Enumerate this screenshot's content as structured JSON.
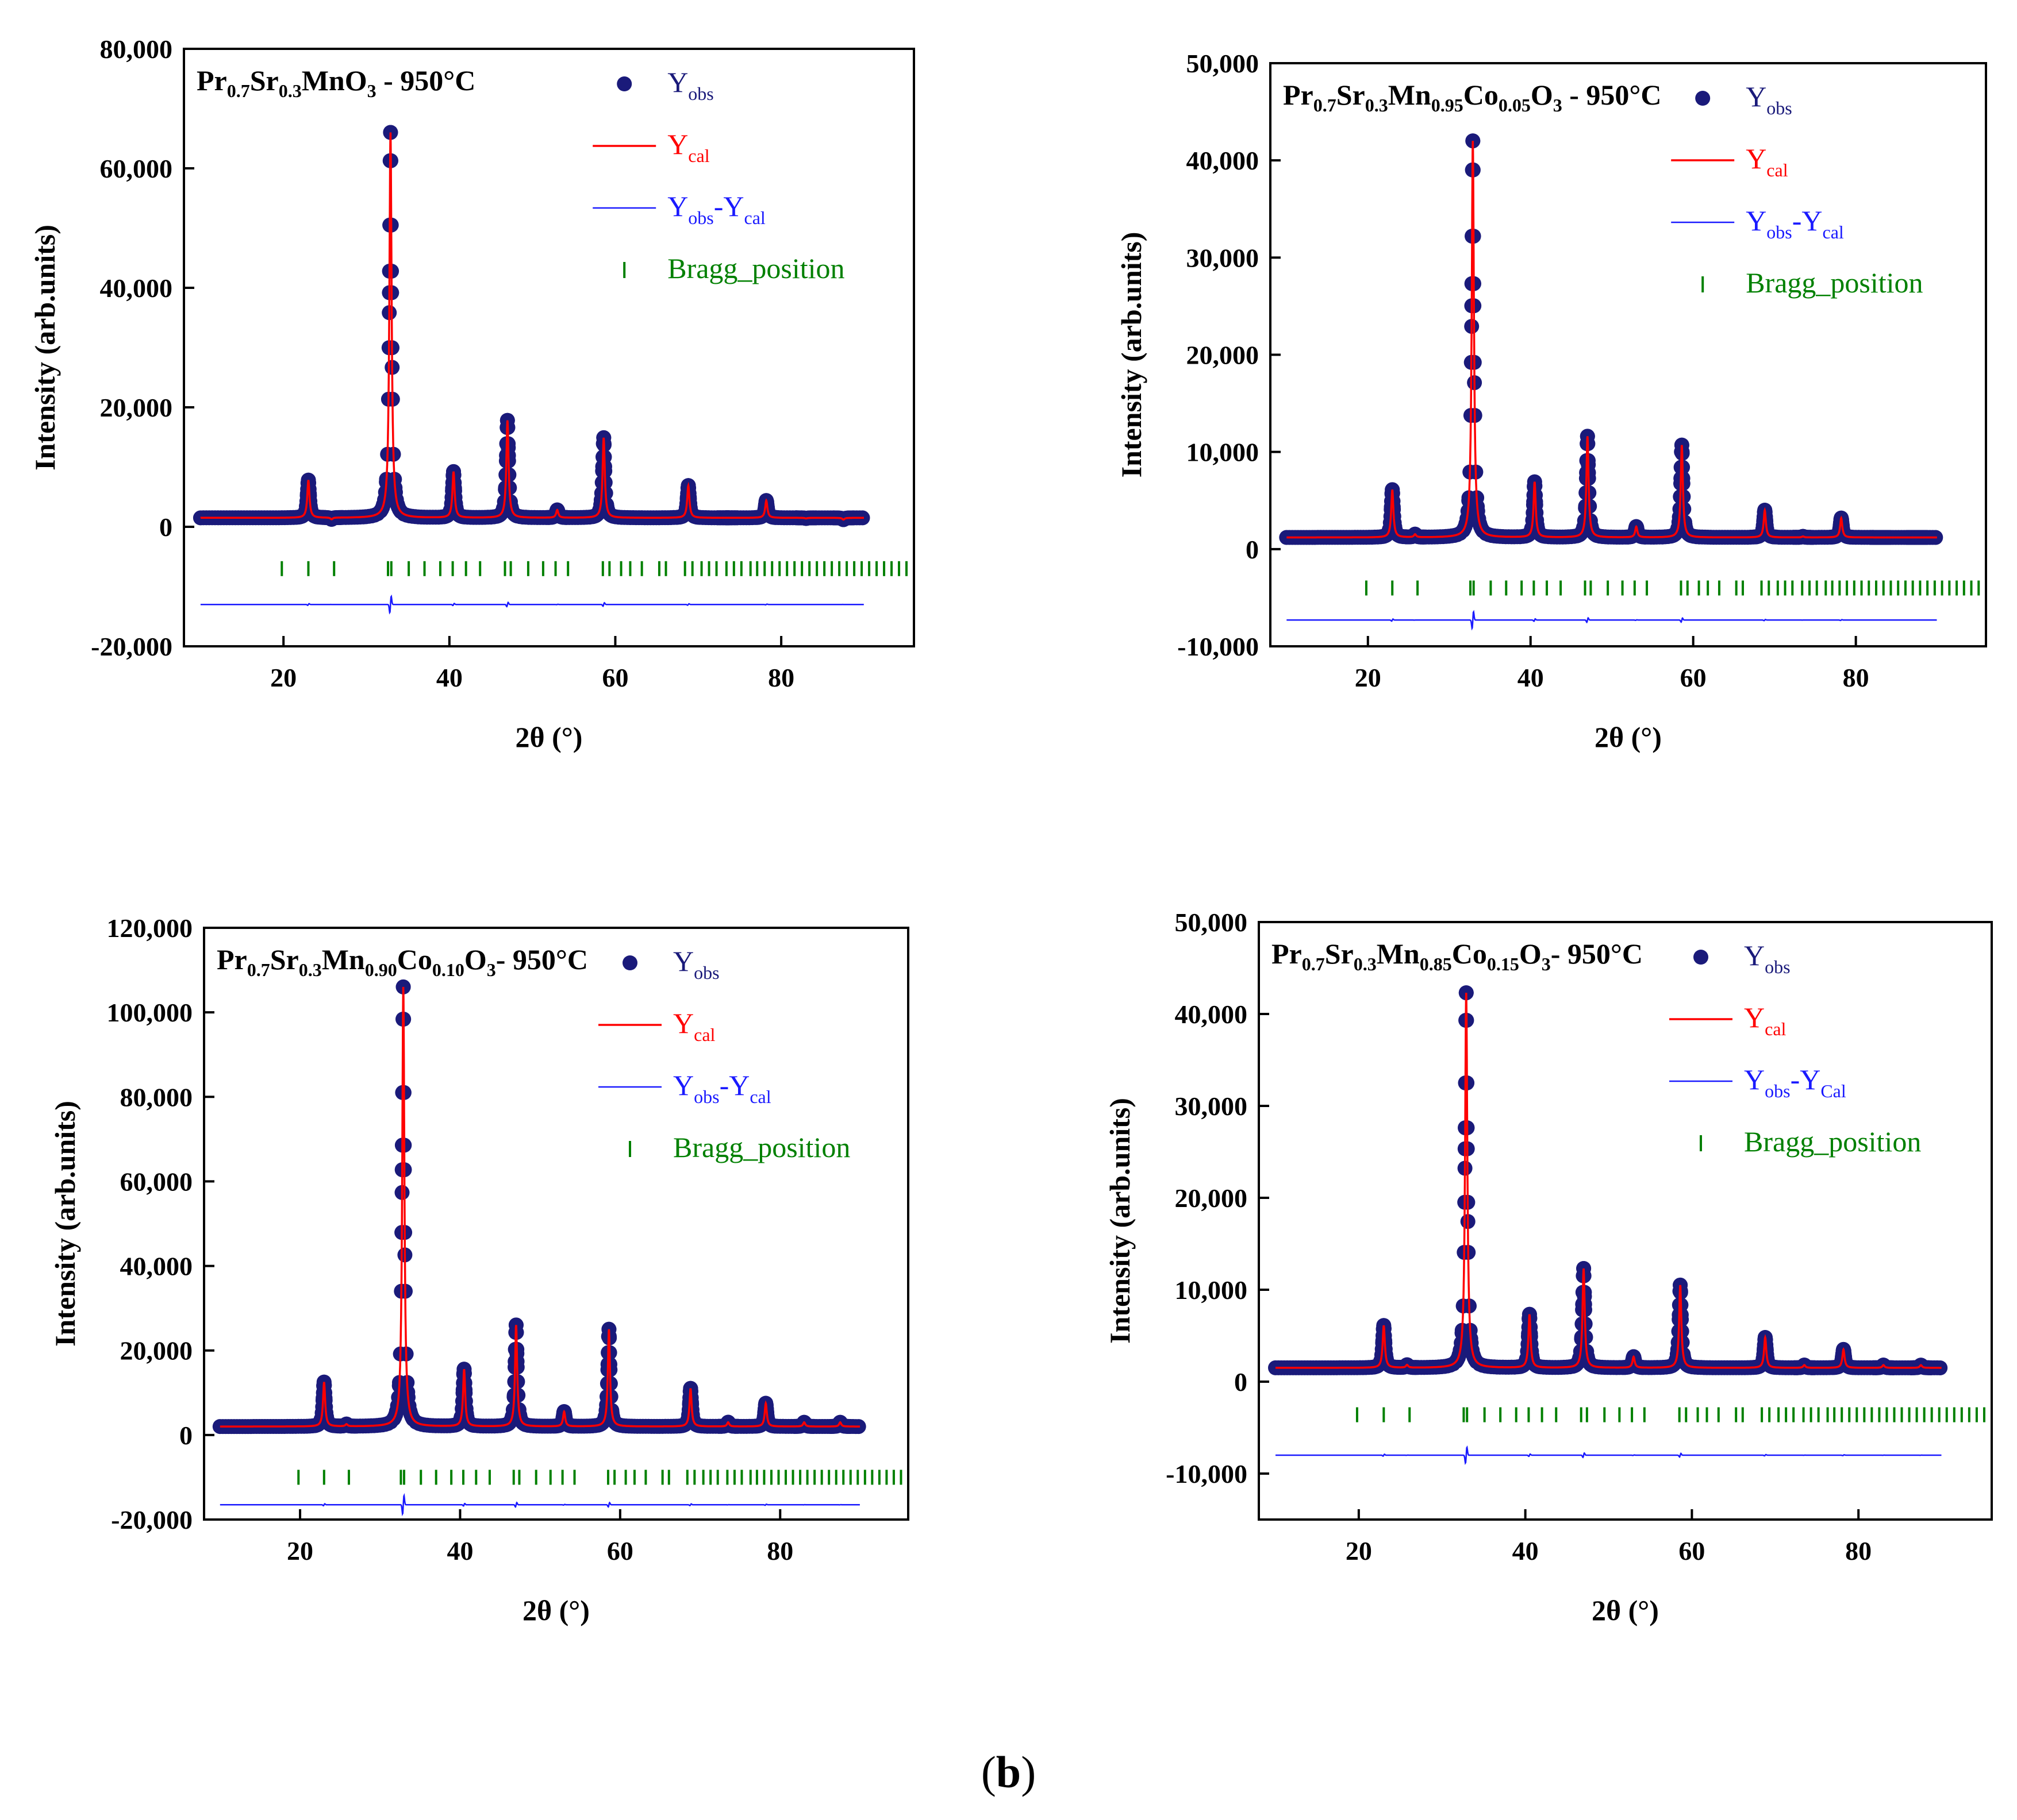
{
  "figure": {
    "caption_open": "(",
    "caption_label": "b",
    "caption_close": ")"
  },
  "chart_data": [
    {
      "type": "scatter",
      "title": "Pr0.7Sr0.3MnO3 - 950°C",
      "title_parts": [
        {
          "t": "Pr",
          "sub": false
        },
        {
          "t": "0.7",
          "sub": true
        },
        {
          "t": "Sr",
          "sub": false
        },
        {
          "t": "0.3",
          "sub": true
        },
        {
          "t": "MnO",
          "sub": false
        },
        {
          "t": "3",
          "sub": true
        },
        {
          "t": " -  950°C",
          "sub": false
        }
      ],
      "xlabel": "2θ (°)",
      "ylabel": "Intensity (arb.units)",
      "xlim": [
        8,
        96
      ],
      "ylim": [
        -20000,
        80000
      ],
      "xticks": [
        20,
        40,
        60,
        80
      ],
      "xtick_labels": [
        "20",
        "40",
        "60",
        "80"
      ],
      "yticks": [
        -20000,
        0,
        20000,
        40000,
        60000,
        80000
      ],
      "ytick_labels": [
        "-20,000",
        "0",
        "20,000",
        "40,000",
        "60,000",
        "80,000"
      ],
      "background": 1500,
      "peaks": [
        [
          23.0,
          7800
        ],
        [
          25.8,
          1200
        ],
        [
          32.9,
          66000
        ],
        [
          40.5,
          9200
        ],
        [
          47.0,
          17800
        ],
        [
          53.0,
          2800
        ],
        [
          58.6,
          14900
        ],
        [
          68.8,
          6900
        ],
        [
          73.5,
          1500
        ],
        [
          78.2,
          4400
        ],
        [
          83.0,
          1400
        ],
        [
          87.5,
          1200
        ]
      ],
      "difference_offset": -13000,
      "bragg_y": -7000,
      "legend": [
        {
          "kind": "marker",
          "main": "Y",
          "sub": "obs",
          "rest": "",
          "sub2": ""
        },
        {
          "kind": "red-line",
          "main": "Y",
          "sub": "cal",
          "rest": "",
          "sub2": ""
        },
        {
          "kind": "blue-line",
          "main": "Y",
          "sub": "obs",
          "rest": "-Y",
          "sub2": "cal"
        },
        {
          "kind": "tick",
          "main": "Bragg_position",
          "sub": "",
          "rest": "",
          "sub2": ""
        }
      ],
      "series": [
        {
          "name": "Yobs",
          "color": "#1a1a7a"
        },
        {
          "name": "Ycal",
          "color": "#ff0000"
        },
        {
          "name": "Yobs-Ycal",
          "color": "#1a1aff"
        },
        {
          "name": "Bragg_position",
          "color": "#008000"
        }
      ]
    },
    {
      "type": "scatter",
      "title": "Pr0.7Sr0.3Mn0.95Co0.05O3 - 950°C",
      "title_parts": [
        {
          "t": "Pr",
          "sub": false
        },
        {
          "t": "0.7",
          "sub": true
        },
        {
          "t": "Sr",
          "sub": false
        },
        {
          "t": "0.3",
          "sub": true
        },
        {
          "t": "Mn",
          "sub": false
        },
        {
          "t": "0.95",
          "sub": true
        },
        {
          "t": "Co",
          "sub": false
        },
        {
          "t": "0.05",
          "sub": true
        },
        {
          "t": "O",
          "sub": false
        },
        {
          "t": "3",
          "sub": true
        },
        {
          "t": " - 950°C",
          "sub": false
        }
      ],
      "xlabel": "2θ (°)",
      "ylabel": "Intensity (arb.units)",
      "xlim": [
        8,
        96
      ],
      "ylim": [
        -10000,
        50000
      ],
      "xticks": [
        20,
        40,
        60,
        80
      ],
      "xtick_labels": [
        "20",
        "40",
        "60",
        "80"
      ],
      "yticks": [
        -10000,
        0,
        10000,
        20000,
        30000,
        40000,
        50000
      ],
      "ytick_labels": [
        "-10,000",
        "0",
        "10,000",
        "20,000",
        "30,000",
        "40,000",
        "50,000"
      ],
      "background": 1200,
      "peaks": [
        [
          23.0,
          6100
        ],
        [
          25.8,
          1500
        ],
        [
          32.9,
          42000
        ],
        [
          40.5,
          6900
        ],
        [
          47.0,
          11600
        ],
        [
          53.0,
          2300
        ],
        [
          58.6,
          10700
        ],
        [
          68.8,
          4000
        ],
        [
          73.5,
          1300
        ],
        [
          78.2,
          3200
        ],
        [
          83.0,
          1200
        ],
        [
          87.5,
          1200
        ]
      ],
      "difference_offset": -7300,
      "bragg_y": -4000,
      "legend": [
        {
          "kind": "marker",
          "main": "Y",
          "sub": "obs",
          "rest": "",
          "sub2": ""
        },
        {
          "kind": "red-line",
          "main": "Y",
          "sub": "cal",
          "rest": "",
          "sub2": ""
        },
        {
          "kind": "blue-line",
          "main": "Y",
          "sub": "obs",
          "rest": "-Y",
          "sub2": "cal"
        },
        {
          "kind": "tick",
          "main": "Bragg_position",
          "sub": "",
          "rest": "",
          "sub2": ""
        }
      ],
      "series": [
        {
          "name": "Yobs",
          "color": "#1a1a7a"
        },
        {
          "name": "Ycal",
          "color": "#ff0000"
        },
        {
          "name": "Yobs-Ycal",
          "color": "#1a1aff"
        },
        {
          "name": "Bragg_position",
          "color": "#008000"
        }
      ]
    },
    {
      "type": "scatter",
      "title": "Pr0.7Sr0.3Mn0.90Co0.10O3- 950°C",
      "title_parts": [
        {
          "t": "Pr",
          "sub": false
        },
        {
          "t": "0.7",
          "sub": true
        },
        {
          "t": "Sr",
          "sub": false
        },
        {
          "t": "0.3",
          "sub": true
        },
        {
          "t": "Mn",
          "sub": false
        },
        {
          "t": "0.90",
          "sub": true
        },
        {
          "t": "Co",
          "sub": false
        },
        {
          "t": "0.10",
          "sub": true
        },
        {
          "t": "O",
          "sub": false
        },
        {
          "t": "3",
          "sub": true
        },
        {
          "t": "- 950°C",
          "sub": false
        }
      ],
      "xlabel": "2θ (°)",
      "ylabel": "Intensity (arb.units)",
      "xlim": [
        8,
        96
      ],
      "ylim": [
        -20000,
        120000
      ],
      "xticks": [
        20,
        40,
        60,
        80
      ],
      "xtick_labels": [
        "20",
        "40",
        "60",
        "80"
      ],
      "yticks": [
        -20000,
        0,
        20000,
        40000,
        60000,
        80000,
        100000,
        120000
      ],
      "ytick_labels": [
        "-20,000",
        "0",
        "20,000",
        "40,000",
        "60,000",
        "80,000",
        "100,000",
        "120,000"
      ],
      "background": 2000,
      "peaks": [
        [
          23.0,
          12500
        ],
        [
          25.8,
          2500
        ],
        [
          32.9,
          106000
        ],
        [
          40.5,
          15500
        ],
        [
          47.0,
          26000
        ],
        [
          53.0,
          5500
        ],
        [
          58.6,
          25000
        ],
        [
          68.8,
          11000
        ],
        [
          73.5,
          3000
        ],
        [
          78.2,
          7500
        ],
        [
          83.0,
          3000
        ],
        [
          87.5,
          3000
        ]
      ],
      "difference_offset": -16500,
      "bragg_y": -10000,
      "legend": [
        {
          "kind": "marker",
          "main": "Y",
          "sub": "obs",
          "rest": "",
          "sub2": ""
        },
        {
          "kind": "red-line",
          "main": "Y",
          "sub": "cal",
          "rest": "",
          "sub2": ""
        },
        {
          "kind": "blue-line",
          "main": "Y",
          "sub": "obs",
          "rest": "-Y",
          "sub2": "cal"
        },
        {
          "kind": "tick",
          "main": "Bragg_position",
          "sub": "",
          "rest": "",
          "sub2": ""
        }
      ],
      "series": [
        {
          "name": "Yobs",
          "color": "#1a1a7a"
        },
        {
          "name": "Ycal",
          "color": "#ff0000"
        },
        {
          "name": "Yobs-Ycal",
          "color": "#1a1aff"
        },
        {
          "name": "Bragg_position",
          "color": "#008000"
        }
      ]
    },
    {
      "type": "scatter",
      "title": "Pr0.7Sr0.3Mn0.85Co0.15O3- 950°C",
      "title_parts": [
        {
          "t": "Pr",
          "sub": false
        },
        {
          "t": "0.7",
          "sub": true
        },
        {
          "t": "Sr",
          "sub": false
        },
        {
          "t": "0.3",
          "sub": true
        },
        {
          "t": "Mn",
          "sub": false
        },
        {
          "t": "0.85",
          "sub": true
        },
        {
          "t": "Co",
          "sub": false
        },
        {
          "t": "0.15",
          "sub": true
        },
        {
          "t": "O",
          "sub": false
        },
        {
          "t": "3",
          "sub": true
        },
        {
          "t": "- 950°C",
          "sub": false
        }
      ],
      "xlabel": "2θ (°)",
      "ylabel": "Intensity (arb.units)",
      "xlim": [
        8,
        96
      ],
      "ylim": [
        -15000,
        50000
      ],
      "xticks": [
        20,
        40,
        60,
        80
      ],
      "xtick_labels": [
        "20",
        "40",
        "60",
        "80"
      ],
      "yticks": [
        -10000,
        0,
        10000,
        20000,
        30000,
        40000,
        50000
      ],
      "ytick_labels": [
        "-10,000",
        "0",
        "10,000",
        "20,000",
        "30,000",
        "40,000",
        "50,000"
      ],
      "background": 1500,
      "peaks": [
        [
          23.0,
          6100
        ],
        [
          25.8,
          1800
        ],
        [
          32.9,
          42300
        ],
        [
          40.5,
          7300
        ],
        [
          47.0,
          12300
        ],
        [
          53.0,
          2700
        ],
        [
          58.6,
          10500
        ],
        [
          68.8,
          4800
        ],
        [
          73.5,
          1800
        ],
        [
          78.2,
          3500
        ],
        [
          83.0,
          1800
        ],
        [
          87.5,
          1800
        ]
      ],
      "difference_offset": -8000,
      "bragg_y": -3600,
      "legend": [
        {
          "kind": "marker",
          "main": "Y",
          "sub": "obs",
          "rest": "",
          "sub2": ""
        },
        {
          "kind": "red-line",
          "main": "Y",
          "sub": "cal",
          "rest": "",
          "sub2": ""
        },
        {
          "kind": "blue-line",
          "main": "Y",
          "sub": "obs",
          "rest": "-Y",
          "sub2": "Cal"
        },
        {
          "kind": "tick",
          "main": "Bragg_position",
          "sub": "",
          "rest": "",
          "sub2": ""
        }
      ],
      "series": [
        {
          "name": "Yobs",
          "color": "#1a1a7a"
        },
        {
          "name": "Ycal",
          "color": "#ff0000"
        },
        {
          "name": "Yobs-Ycal",
          "color": "#1a1aff"
        },
        {
          "name": "Bragg_position",
          "color": "#008000"
        }
      ]
    }
  ]
}
